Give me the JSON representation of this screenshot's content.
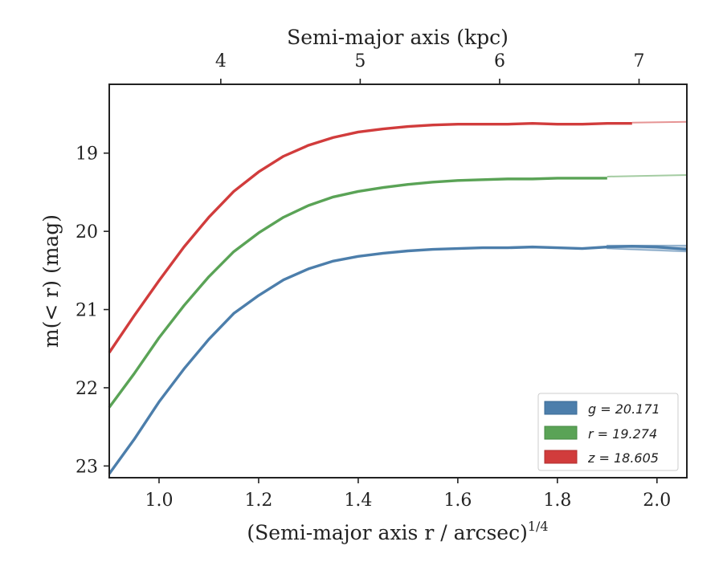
{
  "chart_data": {
    "type": "line",
    "xlabel": "(Semi-major axis r / arcsec)",
    "xlabel_sup": "1/4",
    "ylabel": "m(< r) (mag)",
    "top_xlabel": "Semi-major axis (kpc)",
    "xlim": [
      0.9,
      2.06
    ],
    "ylim": [
      23.15,
      18.12
    ],
    "y_inverted": true,
    "x_ticks": [
      1.0,
      1.2,
      1.4,
      1.6,
      1.8,
      2.0
    ],
    "x_tick_labels": [
      "1.0",
      "1.2",
      "1.4",
      "1.6",
      "1.8",
      "2.0"
    ],
    "y_ticks": [
      19,
      20,
      21,
      22,
      23
    ],
    "y_tick_labels": [
      "19",
      "20",
      "21",
      "22",
      "23"
    ],
    "top_x_ticks_kpc": [
      4,
      5,
      6,
      7
    ],
    "top_x_tick_labels": [
      "4",
      "5",
      "6",
      "7"
    ],
    "top_axis_map": {
      "x_at_kpc4": 1.124,
      "x_per_kpc": 0.28
    },
    "legend_position": "lower-right",
    "grid": false,
    "series": [
      {
        "name": "g = 20.171",
        "color": "#4c7eab",
        "x": [
          0.9,
          0.95,
          1.0,
          1.05,
          1.1,
          1.15,
          1.2,
          1.25,
          1.3,
          1.35,
          1.4,
          1.45,
          1.5,
          1.55,
          1.6,
          1.65,
          1.7,
          1.75,
          1.8,
          1.85,
          1.9,
          1.95,
          2.0,
          2.06
        ],
        "y": [
          23.1,
          22.66,
          22.18,
          21.76,
          21.38,
          21.05,
          20.82,
          20.62,
          20.48,
          20.38,
          20.32,
          20.28,
          20.25,
          20.23,
          20.22,
          20.21,
          20.21,
          20.2,
          20.21,
          20.22,
          20.2,
          20.19,
          20.2,
          20.23
        ],
        "band_x": [
          1.9,
          2.06
        ],
        "band_upper": [
          20.18,
          20.18
        ],
        "band_lower": [
          20.22,
          20.26
        ]
      },
      {
        "name": "r = 19.274",
        "color": "#5aa356",
        "x": [
          0.9,
          0.95,
          1.0,
          1.05,
          1.1,
          1.15,
          1.2,
          1.25,
          1.3,
          1.35,
          1.4,
          1.45,
          1.5,
          1.55,
          1.6,
          1.65,
          1.7,
          1.75,
          1.8,
          1.85,
          1.9
        ],
        "y": [
          22.25,
          21.82,
          21.36,
          20.95,
          20.58,
          20.26,
          20.02,
          19.82,
          19.67,
          19.56,
          19.49,
          19.44,
          19.4,
          19.37,
          19.35,
          19.34,
          19.33,
          19.33,
          19.32,
          19.32,
          19.32
        ],
        "extension_x": [
          1.9,
          2.06
        ],
        "extension_y": [
          19.3,
          19.28
        ]
      },
      {
        "name": "z = 18.605",
        "color": "#d13c3c",
        "x": [
          0.9,
          0.95,
          1.0,
          1.05,
          1.1,
          1.15,
          1.2,
          1.25,
          1.3,
          1.35,
          1.4,
          1.45,
          1.5,
          1.55,
          1.6,
          1.65,
          1.7,
          1.75,
          1.8,
          1.85,
          1.9,
          1.95
        ],
        "y": [
          21.55,
          21.08,
          20.63,
          20.2,
          19.82,
          19.49,
          19.24,
          19.04,
          18.9,
          18.8,
          18.73,
          18.69,
          18.66,
          18.64,
          18.63,
          18.63,
          18.63,
          18.62,
          18.63,
          18.63,
          18.62,
          18.62
        ],
        "extension_x": [
          1.95,
          2.06
        ],
        "extension_y": [
          18.61,
          18.6
        ]
      }
    ]
  }
}
